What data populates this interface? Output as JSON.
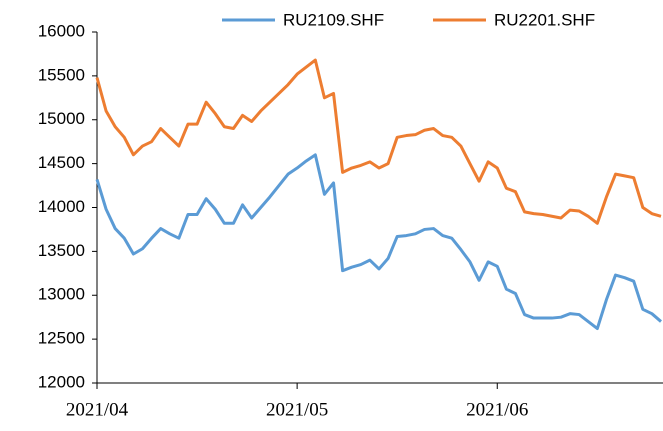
{
  "chart_data": {
    "type": "line",
    "categories": [
      "2021/04",
      null,
      null,
      null,
      null,
      null,
      null,
      null,
      null,
      null,
      null,
      null,
      null,
      null,
      null,
      null,
      null,
      null,
      null,
      null,
      null,
      null,
      "2021/05",
      null,
      null,
      null,
      null,
      null,
      null,
      null,
      null,
      null,
      null,
      null,
      null,
      null,
      null,
      null,
      null,
      null,
      null,
      null,
      null,
      null,
      "2021/06",
      null,
      null,
      null,
      null,
      null,
      null,
      null,
      null,
      null,
      null,
      null,
      null,
      null,
      null,
      null,
      null,
      null,
      null
    ],
    "series": [
      {
        "name": "RU2109.SHF",
        "color": "#5b9bd5",
        "values": [
          14320,
          13980,
          13760,
          13650,
          13470,
          13530,
          13650,
          13760,
          13700,
          13650,
          13920,
          13920,
          14100,
          13980,
          13820,
          13820,
          14030,
          13880,
          14000,
          14120,
          14250,
          14380,
          14450,
          14530,
          14600,
          14150,
          14280,
          13280,
          13320,
          13350,
          13400,
          13300,
          13420,
          13670,
          13680,
          13700,
          13750,
          13760,
          13680,
          13650,
          13520,
          13380,
          13170,
          13380,
          13330,
          13070,
          13020,
          12780,
          12740,
          12740,
          12740,
          12750,
          12790,
          12780,
          12700,
          12620,
          12950,
          13230,
          13200,
          13160,
          12840,
          12790,
          12700
        ]
      },
      {
        "name": "RU2201.SHF",
        "color": "#ed7d31",
        "values": [
          15480,
          15100,
          14920,
          14800,
          14600,
          14700,
          14750,
          14900,
          14800,
          14700,
          14950,
          14950,
          15200,
          15070,
          14920,
          14900,
          15050,
          14980,
          15100,
          15200,
          15300,
          15400,
          15520,
          15600,
          15680,
          15250,
          15300,
          14400,
          14450,
          14480,
          14520,
          14450,
          14500,
          14800,
          14820,
          14830,
          14880,
          14900,
          14820,
          14800,
          14700,
          14500,
          14300,
          14520,
          14450,
          14220,
          14180,
          13950,
          13930,
          13920,
          13900,
          13880,
          13970,
          13960,
          13900,
          13820,
          14120,
          14380,
          14360,
          14340,
          14000,
          13930,
          13900
        ]
      }
    ],
    "ylim": [
      12000,
      16000
    ],
    "yticks": [
      12000,
      12500,
      13000,
      13500,
      14000,
      14500,
      15000,
      15500,
      16000
    ],
    "grid": false,
    "legend": "top"
  }
}
